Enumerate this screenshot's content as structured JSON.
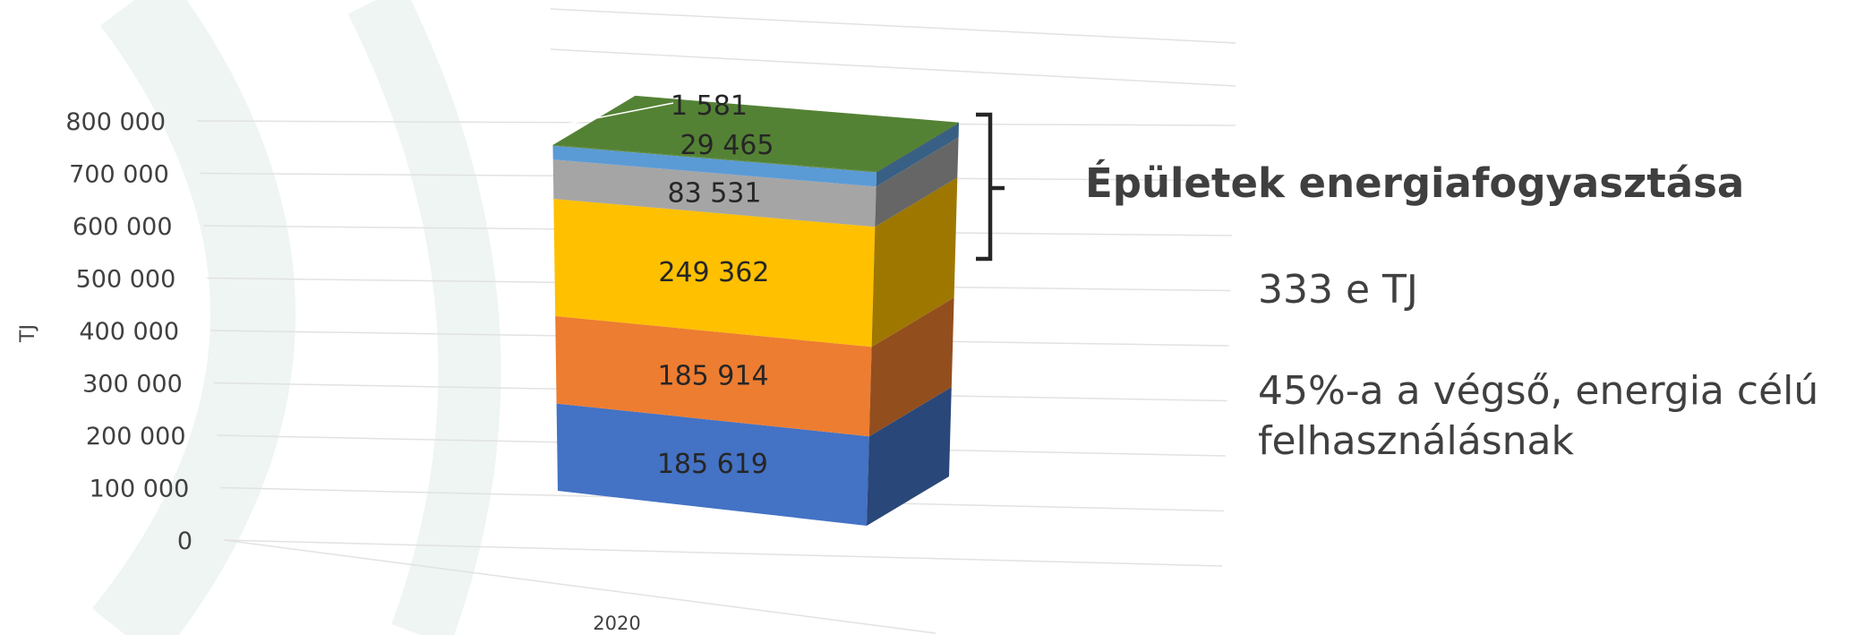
{
  "chart_data": {
    "type": "bar",
    "stacked": true,
    "three_d": true,
    "categories": [
      "2020"
    ],
    "series": [
      {
        "values": [
          185619
        ],
        "color": "#4472C4"
      },
      {
        "values": [
          185914
        ],
        "color": "#ED7D31"
      },
      {
        "values": [
          249362
        ],
        "color": "#FFC000"
      },
      {
        "values": [
          83531
        ],
        "color": "#A5A5A5"
      },
      {
        "values": [
          29465
        ],
        "color": "#5B9BD5"
      },
      {
        "values": [
          1581
        ],
        "color": "#548235"
      }
    ],
    "data_labels": [
      "185 619",
      "185 914",
      "249 362",
      "83 531",
      "29 465",
      "1 581"
    ],
    "ylabel": "TJ",
    "ylim": [
      0,
      800000
    ],
    "y_ticks": [
      0,
      100000,
      200000,
      300000,
      400000,
      500000,
      600000,
      700000,
      800000
    ],
    "y_tick_labels": [
      "0",
      "100 000",
      "200 000",
      "300 000",
      "400 000",
      "500 000",
      "600 000",
      "700 000",
      "800 000"
    ],
    "grid": true,
    "legend": "none"
  },
  "annotation": {
    "title": "Épületek energiafogyasztása",
    "value": "333 e TJ",
    "share_line1": "45%-a a végső, energia célú",
    "share_line2": "felhasználásnak"
  }
}
